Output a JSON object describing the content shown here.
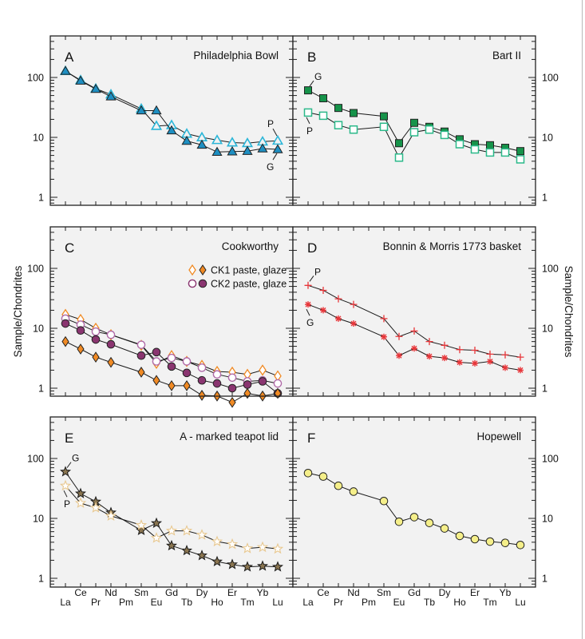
{
  "figure": {
    "y_axis_label": "Sample/Chondrites",
    "x_tick_labels_upper": [
      "Ce",
      "Nd",
      "Sm",
      "Gd",
      "Dy",
      "Er",
      "Yb"
    ],
    "x_tick_labels_lower": [
      "La",
      "Pr",
      "Pm",
      "Eu",
      "Tb",
      "Ho",
      "Tm",
      "Lu"
    ]
  },
  "chart_data": [
    {
      "type": "line",
      "panel": "A",
      "title": "Philadelphia Bowl",
      "yscale": "log",
      "ylim": [
        0.7,
        500
      ],
      "yticks": [
        "1",
        "10",
        "100"
      ],
      "categories": [
        "La",
        "Ce",
        "Pr",
        "Nd",
        "Pm",
        "Sm",
        "Eu",
        "Gd",
        "Tb",
        "Dy",
        "Ho",
        "Er",
        "Tm",
        "Yb",
        "Lu"
      ],
      "series": [
        {
          "name": "P",
          "label": "P",
          "marker": "triangle-open",
          "color": "#2bb6d8",
          "values": [
            128,
            90,
            65,
            52,
            null,
            30,
            15.5,
            16,
            11.5,
            10,
            9,
            8.2,
            8,
            8.5,
            8.8
          ]
        },
        {
          "name": "G",
          "label": "G",
          "marker": "triangle-filled",
          "color": "#1e8fc2",
          "values": [
            128,
            88,
            64,
            48,
            null,
            28,
            28,
            13,
            8.7,
            7.5,
            5.7,
            5.8,
            5.9,
            6.5,
            6.3
          ]
        }
      ]
    },
    {
      "type": "line",
      "panel": "B",
      "title": "Bart II",
      "yscale": "log",
      "ylim": [
        0.7,
        500
      ],
      "yticks": [
        "1",
        "10",
        "100"
      ],
      "categories": [
        "La",
        "Ce",
        "Pr",
        "Nd",
        "Pm",
        "Sm",
        "Eu",
        "Gd",
        "Tb",
        "Dy",
        "Ho",
        "Er",
        "Tm",
        "Yb",
        "Lu"
      ],
      "series": [
        {
          "name": "G",
          "label": "G",
          "marker": "square-filled",
          "color": "#16934a",
          "values": [
            61,
            45,
            31,
            25.5,
            null,
            22.5,
            8,
            17.5,
            15,
            12.5,
            9.3,
            7.7,
            7.4,
            6.7,
            5.9
          ]
        },
        {
          "name": "P",
          "label": "P",
          "marker": "square-open",
          "color": "#2bb98a",
          "values": [
            26,
            23,
            16,
            13.5,
            null,
            15,
            4.6,
            12.2,
            13.5,
            11,
            7.7,
            6.3,
            5.6,
            5.6,
            4.3
          ]
        }
      ]
    },
    {
      "type": "line",
      "panel": "C",
      "title": "Cookworthy",
      "yscale": "log",
      "ylim": [
        0.7,
        500
      ],
      "yticks": [
        "1",
        "10",
        "100"
      ],
      "legend": [
        {
          "label": "CK1 paste, glaze",
          "markers": [
            "diamond-open",
            "diamond-filled"
          ],
          "color": "#f08a24"
        },
        {
          "label": "CK2 paste, glaze",
          "markers": [
            "circle-open",
            "circle-filled"
          ],
          "color": "#8a3570"
        }
      ],
      "legend_position": "top-right",
      "categories": [
        "La",
        "Ce",
        "Pr",
        "Nd",
        "Pm",
        "Sm",
        "Eu",
        "Gd",
        "Tb",
        "Dy",
        "Ho",
        "Er",
        "Tm",
        "Yb",
        "Lu"
      ],
      "series": [
        {
          "name": "CK1 paste",
          "marker": "diamond-open",
          "color": "#f08a24",
          "values": [
            17,
            14,
            10,
            7.8,
            null,
            5.2,
            2.6,
            3.5,
            2.8,
            2.4,
            1.9,
            1.85,
            1.7,
            2.0,
            1.6
          ]
        },
        {
          "name": "CK2 paste",
          "marker": "circle-open",
          "color": "#b06aa8",
          "values": [
            14.5,
            11.5,
            8.8,
            7.8,
            null,
            5.3,
            2.8,
            3.2,
            2.8,
            2.2,
            1.7,
            1.5,
            1.3,
            1.35,
            1.2
          ]
        },
        {
          "name": "CK2 glaze",
          "marker": "circle-filled",
          "color": "#8a3570",
          "values": [
            12,
            9.2,
            6.5,
            5.4,
            null,
            3.5,
            4.0,
            2.3,
            1.8,
            1.35,
            1.2,
            1.0,
            1.15,
            1.3,
            0.82
          ]
        },
        {
          "name": "CK1 glaze",
          "marker": "diamond-filled",
          "color": "#f08a24",
          "values": [
            6,
            4.5,
            3.3,
            2.7,
            null,
            1.85,
            1.35,
            1.1,
            1.1,
            0.76,
            0.74,
            0.58,
            0.82,
            0.74,
            0.82
          ]
        }
      ]
    },
    {
      "type": "line",
      "panel": "D",
      "title": "Bonnin & Morris 1773 basket",
      "yscale": "log",
      "ylim": [
        0.7,
        500
      ],
      "yticks": [
        "1",
        "10",
        "100"
      ],
      "categories": [
        "La",
        "Ce",
        "Pr",
        "Nd",
        "Pm",
        "Sm",
        "Eu",
        "Gd",
        "Tb",
        "Dy",
        "Ho",
        "Er",
        "Tm",
        "Yb",
        "Lu"
      ],
      "series": [
        {
          "name": "P",
          "label": "P",
          "marker": "plus",
          "color": "#e8363a",
          "values": [
            52,
            43,
            31,
            25,
            null,
            14.5,
            7.3,
            9,
            6,
            5.2,
            4.4,
            4.3,
            3.7,
            3.6,
            3.3
          ]
        },
        {
          "name": "G",
          "label": "G",
          "marker": "asterisk",
          "color": "#e8363a",
          "values": [
            25,
            20,
            14.5,
            12,
            null,
            7.2,
            3.5,
            4.6,
            3.4,
            3.2,
            2.7,
            2.6,
            2.8,
            2.2,
            2.0
          ]
        }
      ]
    },
    {
      "type": "line",
      "panel": "E",
      "title": "A - marked teapot lid",
      "yscale": "log",
      "ylim": [
        0.7,
        500
      ],
      "yticks": [
        "1",
        "10",
        "100"
      ],
      "categories": [
        "La",
        "Ce",
        "Pr",
        "Nd",
        "Pm",
        "Sm",
        "Eu",
        "Gd",
        "Tb",
        "Dy",
        "Ho",
        "Er",
        "Tm",
        "Yb",
        "Lu"
      ],
      "series": [
        {
          "name": "G",
          "label": "G",
          "marker": "star-filled",
          "color": "#8a7550",
          "values": [
            60,
            26,
            19,
            12.5,
            null,
            6.3,
            8.3,
            3.5,
            2.9,
            2.4,
            1.9,
            1.7,
            1.55,
            1.6,
            1.55
          ]
        },
        {
          "name": "P",
          "label": "P",
          "marker": "star-open",
          "color": "#e8c890",
          "values": [
            35,
            18,
            15,
            11,
            null,
            7.7,
            4.7,
            6.2,
            6.2,
            5.3,
            4.1,
            3.7,
            3.15,
            3.3,
            3.1
          ]
        }
      ]
    },
    {
      "type": "line",
      "panel": "F",
      "title": "Hopewell",
      "yscale": "log",
      "ylim": [
        0.7,
        500
      ],
      "yticks": [
        "1",
        "10",
        "100"
      ],
      "categories": [
        "La",
        "Ce",
        "Pr",
        "Nd",
        "Pm",
        "Sm",
        "Eu",
        "Gd",
        "Tb",
        "Dy",
        "Ho",
        "Er",
        "Tm",
        "Yb",
        "Lu"
      ],
      "series": [
        {
          "name": "Hopewell",
          "marker": "circle-filled",
          "color": "#f5ef8a",
          "values": [
            57,
            50,
            35,
            28,
            null,
            19.5,
            8.8,
            10.5,
            8.4,
            6.8,
            5.1,
            4.5,
            4.1,
            3.9,
            3.6
          ]
        }
      ]
    }
  ]
}
